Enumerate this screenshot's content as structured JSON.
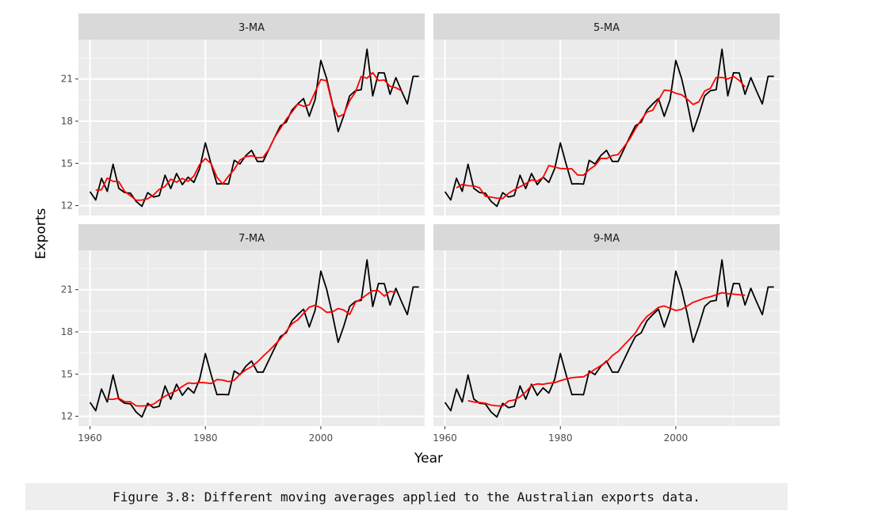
{
  "chart_data": {
    "type": "line",
    "xlabel": "Year",
    "ylabel": "Exports",
    "xlim": [
      1958,
      2018
    ],
    "ylim": [
      11.3,
      23.8
    ],
    "x_ticks": [
      1960,
      1980,
      2000
    ],
    "y_ticks": [
      12,
      15,
      18,
      21
    ],
    "grid": true,
    "colors": {
      "data": "#000000",
      "ma": "#ff0000",
      "panel": "#ebebeb",
      "strip": "#d9d9d9"
    },
    "x": [
      1960,
      1961,
      1962,
      1963,
      1964,
      1965,
      1966,
      1967,
      1968,
      1969,
      1970,
      1971,
      1972,
      1973,
      1974,
      1975,
      1976,
      1977,
      1978,
      1979,
      1980,
      1981,
      1982,
      1983,
      1984,
      1985,
      1986,
      1987,
      1988,
      1989,
      1990,
      1991,
      1992,
      1993,
      1994,
      1995,
      1996,
      1997,
      1998,
      1999,
      2000,
      2001,
      2002,
      2003,
      2004,
      2005,
      2006,
      2007,
      2008,
      2009,
      2010,
      2011,
      2012,
      2013,
      2014,
      2015,
      2016,
      2017
    ],
    "exports": [
      12.99,
      12.4,
      13.94,
      13.01,
      14.94,
      13.22,
      12.93,
      12.88,
      12.3,
      11.95,
      12.92,
      12.61,
      12.71,
      14.16,
      13.21,
      14.28,
      13.49,
      14.02,
      13.65,
      14.62,
      16.46,
      14.95,
      13.54,
      13.55,
      13.53,
      15.22,
      14.96,
      15.55,
      15.93,
      15.14,
      15.14,
      16.0,
      16.85,
      17.67,
      17.93,
      18.79,
      19.23,
      19.61,
      18.35,
      19.52,
      22.32,
      21.04,
      19.25,
      17.26,
      18.42,
      19.8,
      20.17,
      20.24,
      23.12,
      19.8,
      21.44,
      21.43,
      19.91,
      21.1,
      20.13,
      19.23,
      21.19,
      21.19
    ],
    "series": [
      {
        "name": "3-MA",
        "values": [
          null,
          13.11,
          13.12,
          13.96,
          13.72,
          13.7,
          13.01,
          12.7,
          12.38,
          12.39,
          12.49,
          12.75,
          13.16,
          13.36,
          13.88,
          13.66,
          13.93,
          13.72,
          14.1,
          14.91,
          15.34,
          14.98,
          14.01,
          13.54,
          14.1,
          14.57,
          15.24,
          15.48,
          15.54,
          15.4,
          15.43,
          16.0,
          16.84,
          17.48,
          18.13,
          18.65,
          19.21,
          19.06,
          19.16,
          20.06,
          20.96,
          20.87,
          19.18,
          18.31,
          18.49,
          19.46,
          20.07,
          21.18,
          21.05,
          21.45,
          20.89,
          20.93,
          20.48,
          20.38,
          20.15,
          null,
          null,
          null
        ]
      },
      {
        "name": "5-MA",
        "values": [
          null,
          null,
          13.26,
          13.5,
          13.41,
          13.4,
          13.26,
          12.66,
          12.6,
          12.53,
          12.5,
          12.87,
          13.12,
          13.34,
          13.56,
          13.83,
          13.73,
          14.01,
          14.85,
          14.74,
          14.64,
          14.62,
          14.61,
          14.17,
          14.16,
          14.56,
          14.84,
          15.36,
          15.34,
          15.55,
          15.63,
          16.16,
          16.72,
          17.45,
          18.09,
          18.65,
          18.78,
          19.5,
          20.21,
          20.17,
          19.98,
          19.88,
          19.56,
          19.19,
          19.38,
          20.14,
          20.34,
          21.11,
          21.11,
          21.0,
          21.18,
          20.9,
          20.44,
          null,
          null,
          null,
          null,
          null
        ]
      },
      {
        "name": "7-MA",
        "values": [
          null,
          null,
          null,
          13.21,
          13.21,
          13.28,
          13.04,
          13.03,
          12.74,
          12.73,
          12.76,
          12.86,
          13.15,
          13.43,
          13.63,
          13.82,
          14.12,
          14.37,
          14.33,
          14.4,
          14.38,
          14.33,
          14.61,
          14.57,
          14.46,
          14.56,
          14.99,
          15.3,
          15.53,
          15.86,
          16.27,
          16.65,
          17.07,
          17.51,
          18.03,
          18.58,
          18.85,
          19.32,
          19.75,
          19.89,
          19.71,
          19.39,
          19.42,
          19.66,
          19.55,
          19.24,
          20.11,
          20.35,
          20.66,
          20.93,
          20.92,
          20.54,
          20.89,
          20.8,
          null,
          null,
          null,
          null
        ]
      },
      {
        "name": "9-MA",
        "values": [
          null,
          null,
          null,
          null,
          13.11,
          13.02,
          12.98,
          12.93,
          12.79,
          12.74,
          12.73,
          13.08,
          13.16,
          13.38,
          13.72,
          14.19,
          14.3,
          14.27,
          14.35,
          14.39,
          14.53,
          14.65,
          14.74,
          14.78,
          14.8,
          15.06,
          15.34,
          15.6,
          15.86,
          16.31,
          16.61,
          17.05,
          17.47,
          17.92,
          18.6,
          19.1,
          19.4,
          19.74,
          19.84,
          19.68,
          19.52,
          19.6,
          19.84,
          20.1,
          20.24,
          20.4,
          20.5,
          20.64,
          20.78,
          20.72,
          20.68,
          20.64,
          20.6,
          null,
          null,
          null,
          null,
          null
        ]
      }
    ]
  },
  "panels": [
    {
      "strip": "3-MA"
    },
    {
      "strip": "5-MA"
    },
    {
      "strip": "7-MA"
    },
    {
      "strip": "9-MA"
    }
  ],
  "axes": {
    "y_tick_labels": [
      "12",
      "15",
      "18",
      "21"
    ],
    "x_tick_labels": [
      "1960",
      "1980",
      "2000"
    ]
  },
  "caption": "Figure 3.8: Different moving averages applied to the Australian exports data."
}
